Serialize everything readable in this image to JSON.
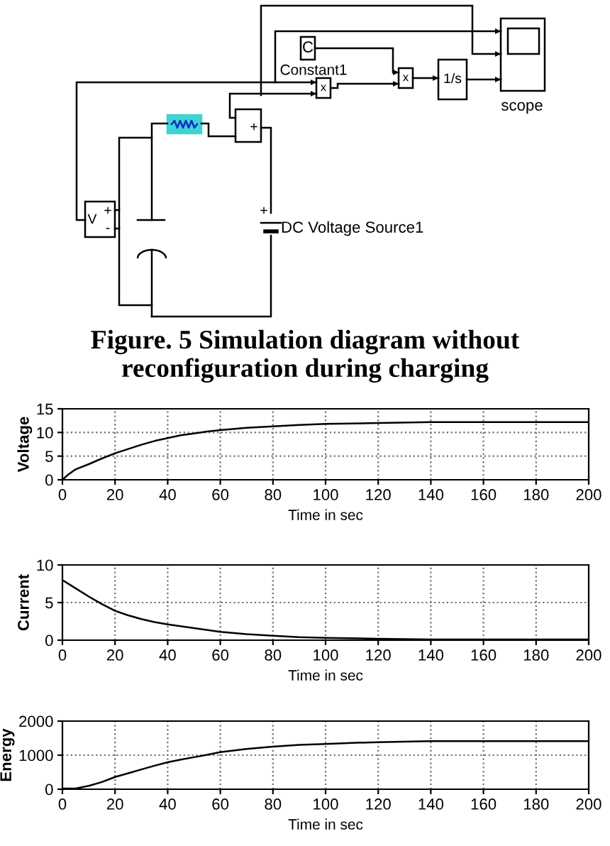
{
  "chart_data": [
    {
      "type": "other",
      "annotations": [
        "C",
        "Constant1",
        "x",
        "x",
        "1/s",
        "scope",
        "V",
        "+",
        "-",
        "+",
        "+",
        "DC Voltage Source1",
        "Figure. 5 Simulation diagram without reconfiguration during charging"
      ]
    },
    {
      "type": "line",
      "xlabel": "Time in sec",
      "ylabel": "Voltage",
      "x": [
        0,
        2,
        5,
        10,
        15,
        20,
        25,
        30,
        35,
        40,
        45,
        50,
        55,
        60,
        70,
        80,
        90,
        100,
        120,
        140,
        160,
        180,
        200
      ],
      "series": [
        {
          "color": "#000000",
          "values": [
            0,
            1.0,
            2.2,
            3.3,
            4.5,
            5.6,
            6.5,
            7.4,
            8.2,
            8.8,
            9.4,
            9.8,
            10.2,
            10.5,
            11.0,
            11.3,
            11.6,
            11.8,
            12.0,
            12.2,
            12.2,
            12.2,
            12.2
          ]
        }
      ],
      "xlim": [
        0,
        200
      ],
      "xticks": [
        0,
        20,
        40,
        60,
        80,
        100,
        120,
        140,
        160,
        180,
        200
      ],
      "ylim": [
        0,
        15
      ],
      "yticks": [
        0,
        5,
        10,
        15
      ],
      "grid": true
    },
    {
      "type": "line",
      "xlabel": "Time in sec",
      "ylabel": "Current",
      "x": [
        0,
        5,
        10,
        15,
        20,
        25,
        30,
        35,
        40,
        50,
        60,
        70,
        80,
        90,
        100,
        120,
        140,
        160,
        180,
        200
      ],
      "series": [
        {
          "color": "#000000",
          "values": [
            8.0,
            6.9,
            5.8,
            4.8,
            3.9,
            3.3,
            2.8,
            2.4,
            2.1,
            1.6,
            1.1,
            0.8,
            0.6,
            0.4,
            0.3,
            0.2,
            0.1,
            0.1,
            0.1,
            0.1
          ]
        }
      ],
      "xlim": [
        0,
        200
      ],
      "xticks": [
        0,
        20,
        40,
        60,
        80,
        100,
        120,
        140,
        160,
        180,
        200
      ],
      "ylim": [
        0,
        10
      ],
      "yticks": [
        0,
        5,
        10
      ],
      "grid": true
    },
    {
      "type": "line",
      "xlabel": "Time in sec",
      "ylabel": "Energy",
      "x": [
        0,
        5,
        10,
        15,
        20,
        25,
        30,
        35,
        40,
        45,
        50,
        55,
        60,
        70,
        80,
        90,
        100,
        110,
        120,
        133,
        140,
        200
      ],
      "series": [
        {
          "color": "#000000",
          "values": [
            20,
            20,
            100,
            210,
            360,
            470,
            580,
            690,
            790,
            870,
            940,
            1010,
            1090,
            1180,
            1250,
            1300,
            1330,
            1360,
            1380,
            1400,
            1410,
            1410
          ]
        }
      ],
      "xlim": [
        0,
        200
      ],
      "xticks": [
        0,
        20,
        40,
        60,
        80,
        100,
        120,
        140,
        160,
        180,
        200
      ],
      "ylim": [
        0,
        2000
      ],
      "yticks": [
        0,
        1000,
        2000
      ],
      "grid": true
    }
  ]
}
